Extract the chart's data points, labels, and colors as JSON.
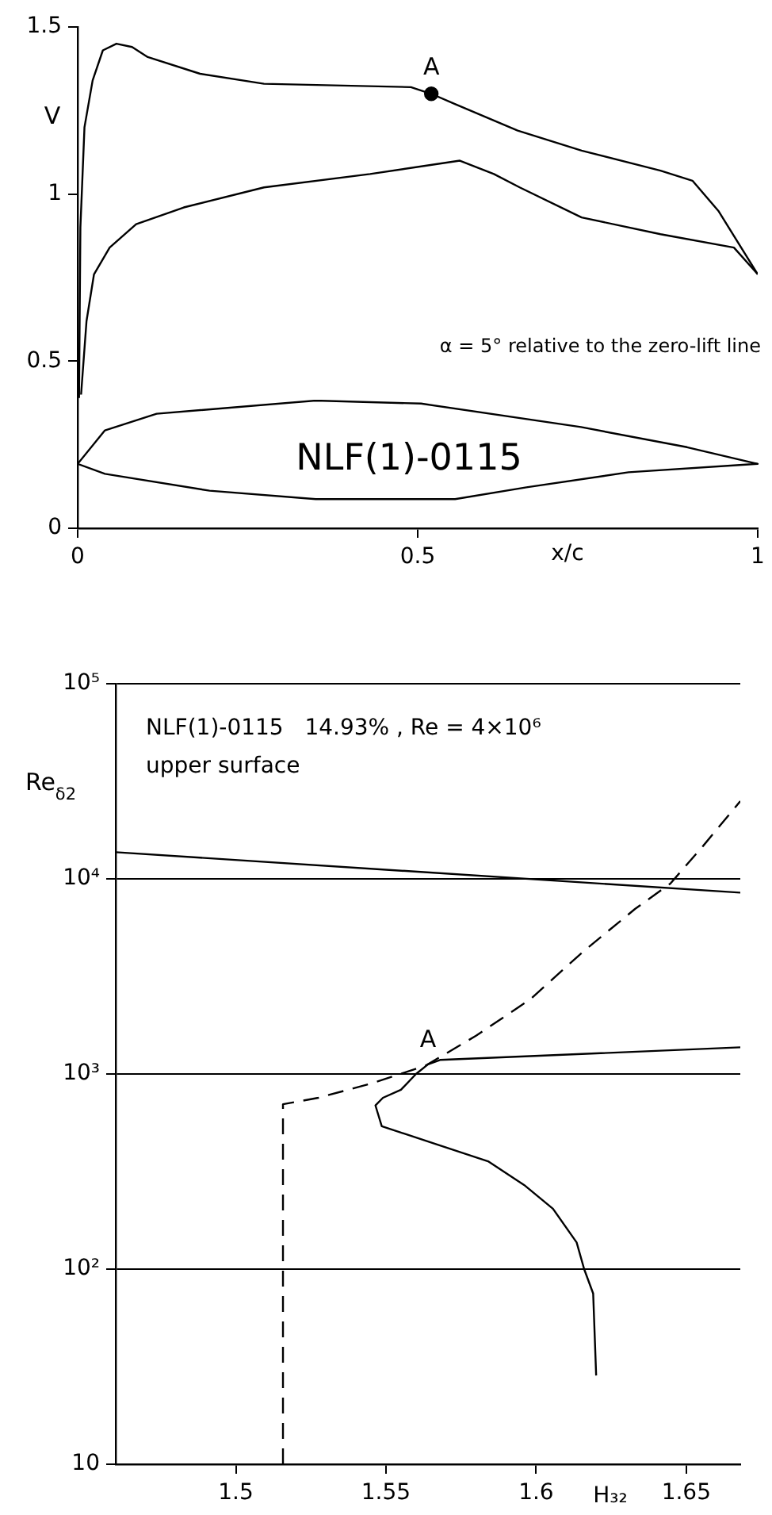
{
  "chart_data": [
    {
      "type": "line",
      "xlabel": "x/c",
      "ylabel": "V",
      "xlim": [
        0,
        1
      ],
      "ylim": [
        0,
        1.5
      ],
      "xticks": [
        0,
        0.5,
        1
      ],
      "yticks": [
        0,
        0.5,
        1,
        1.5
      ],
      "grid": false,
      "legend": false,
      "marker": "none",
      "annotations": [
        "α = 5° relative to the zero-lift line",
        "NLF(1)-0115",
        {
          "text": "A",
          "x": 0.52,
          "y": 1.3
        }
      ],
      "series": [
        {
          "color": "#000000",
          "x": [
            0.002,
            0.004,
            0.01,
            0.022,
            0.037,
            0.057,
            0.08,
            0.103,
            0.18,
            0.274,
            0.49,
            0.52,
            0.554,
            0.647,
            0.741,
            0.857,
            0.904,
            0.942,
            1.0
          ],
          "values": [
            0.39,
            0.9,
            1.2,
            1.34,
            1.43,
            1.45,
            1.44,
            1.41,
            1.36,
            1.33,
            1.32,
            1.3,
            1.27,
            1.19,
            1.13,
            1.07,
            1.04,
            0.95,
            0.76
          ]
        },
        {
          "color": "#000000",
          "x": [
            0.005,
            0.013,
            0.024,
            0.047,
            0.086,
            0.156,
            0.274,
            0.43,
            0.562,
            0.612,
            0.65,
            0.741,
            0.857,
            0.965,
            1.0
          ],
          "values": [
            0.4,
            0.62,
            0.76,
            0.84,
            0.91,
            0.96,
            1.02,
            1.06,
            1.1,
            1.06,
            1.02,
            0.93,
            0.88,
            0.84,
            0.76
          ]
        },
        {
          "type": "scatter",
          "marker": "circle",
          "color": "#000000",
          "x": [
            0.52
          ],
          "values": [
            1.3
          ]
        }
      ]
    },
    {
      "type": "line",
      "xlabel": "H₃₂",
      "ylabel": "Re$_{δ2}$",
      "log": "y",
      "xlim": [
        1.46,
        1.668
      ],
      "ylim": [
        10,
        100000
      ],
      "xticks": [
        1.5,
        1.55,
        1.6,
        1.65
      ],
      "yticks": [
        10,
        {
          "value": 100,
          "label": "10²"
        },
        {
          "value": 1000,
          "label": "10³"
        },
        {
          "value": 10000,
          "label": "10⁴"
        },
        {
          "value": 100000,
          "label": "10⁵"
        }
      ],
      "grid": "y",
      "legend": false,
      "marker": "none",
      "annotations": [
        "NLF(1)-0115   14.93% , Re = 4×10⁶",
        "upper surface",
        {
          "text": "A",
          "x": 1.564,
          "y": 1100
        }
      ],
      "series": [
        {
          "color": "#000000",
          "x": [
            1.46,
            1.668
          ],
          "values": [
            13700,
            8500
          ]
        },
        {
          "color": "#000000",
          "x": [
            1.668,
            1.568,
            1.564,
            1.56,
            1.555,
            1.549,
            1.5465,
            1.547,
            1.5486,
            1.568,
            1.584,
            1.596,
            1.6056,
            1.6135,
            1.616,
            1.619,
            1.62
          ],
          "values": [
            1370,
            1180,
            1120,
            1000,
            830,
            755,
            690,
            650,
            540,
            430,
            357,
            270,
            204,
            137,
            100,
            75,
            28.5
          ]
        },
        {
          "color": "#000000",
          "line_style": "dashed",
          "x": [
            1.5157,
            1.5157,
            1.5275,
            1.545,
            1.563,
            1.58,
            1.598,
            1.6156,
            1.633,
            1.6447,
            1.6557,
            1.668
          ],
          "values": [
            10,
            700,
            755,
            893,
            1100,
            1570,
            2410,
            4230,
            7020,
            9460,
            14800,
            25000
          ]
        }
      ]
    }
  ]
}
